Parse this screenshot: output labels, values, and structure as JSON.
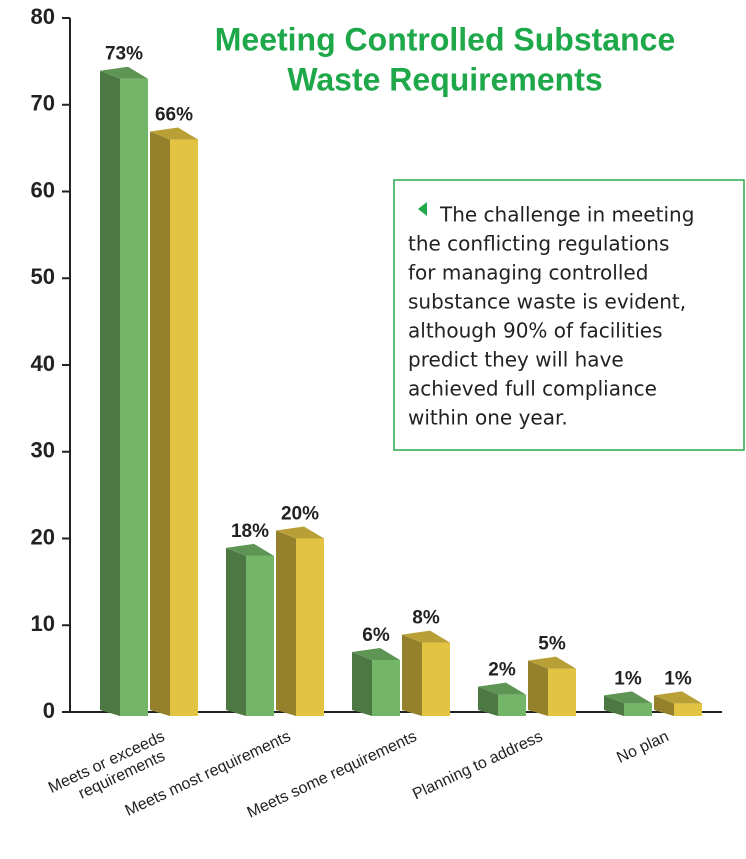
{
  "chart_data": {
    "type": "bar3d",
    "title": [
      "Meeting Controlled Substance",
      "Waste Requirements"
    ],
    "categories": [
      [
        "Meets or exceeds",
        "requirements"
      ],
      [
        "Meets most requirements"
      ],
      [
        "Meets some requirements"
      ],
      [
        "Planning to address"
      ],
      [
        "No plan"
      ]
    ],
    "series": [
      {
        "color": "#74b667",
        "values": [
          73,
          18,
          6,
          2,
          1
        ],
        "value_labels": [
          "73%",
          "18%",
          "6%",
          "2%",
          "1%"
        ]
      },
      {
        "color": "#e2c342",
        "values": [
          66,
          20,
          8,
          5,
          1
        ],
        "value_labels": [
          "66%",
          "20%",
          "8%",
          "5%",
          "1%"
        ]
      }
    ],
    "ylim": [
      0,
      80
    ],
    "yticks": [
      0,
      10,
      20,
      30,
      40,
      50,
      60,
      70,
      80
    ],
    "annotation": [
      "The challenge in meeting",
      "the conflicting regulations",
      "for managing controlled",
      "substance waste is evident,",
      "although 90% of facilities",
      "predict they will have",
      "achieved full compliance",
      "within one year."
    ]
  }
}
